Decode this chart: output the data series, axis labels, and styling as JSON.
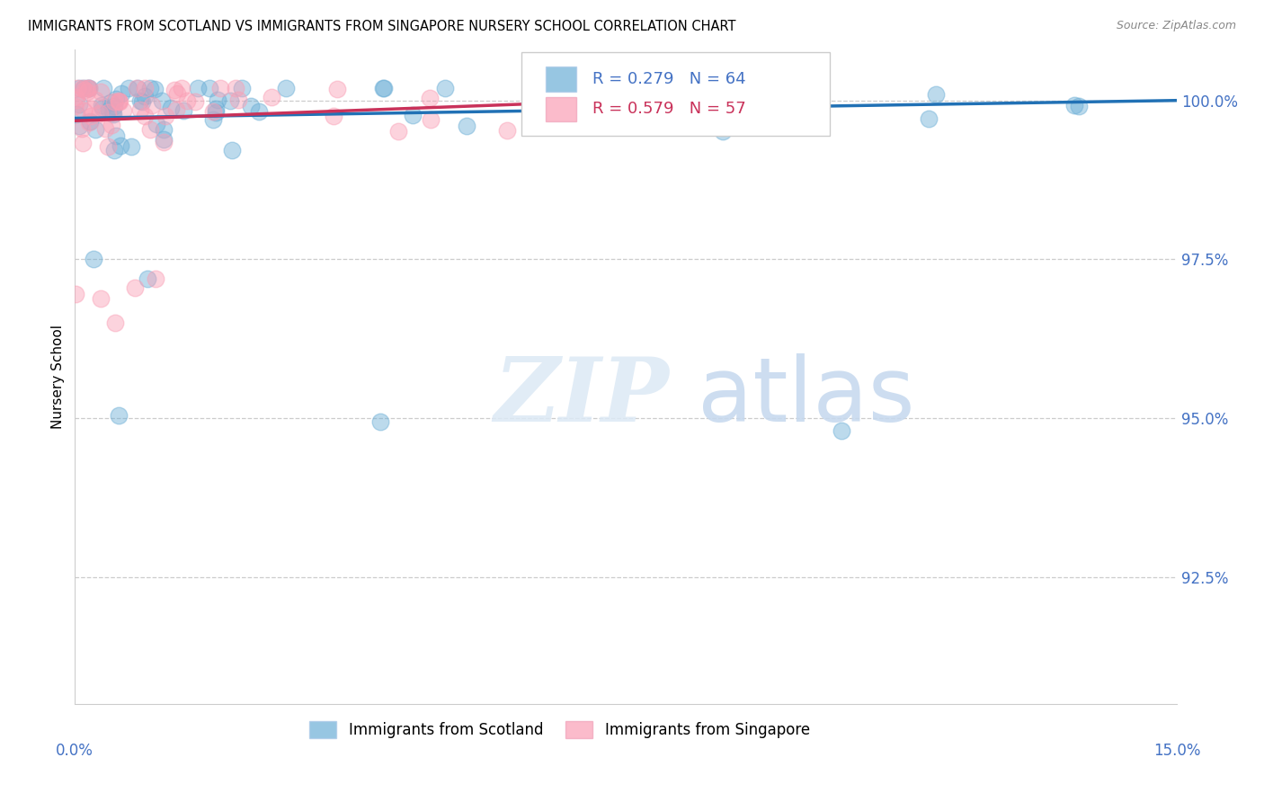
{
  "title": "IMMIGRANTS FROM SCOTLAND VS IMMIGRANTS FROM SINGAPORE NURSERY SCHOOL CORRELATION CHART",
  "source": "Source: ZipAtlas.com",
  "ylabel": "Nursery School",
  "ytick_labels": [
    "100.0%",
    "97.5%",
    "95.0%",
    "92.5%"
  ],
  "ytick_values": [
    1.0,
    0.975,
    0.95,
    0.925
  ],
  "xlim": [
    0.0,
    0.15
  ],
  "ylim": [
    0.905,
    1.008
  ],
  "scotland_color": "#6baed6",
  "singapore_color": "#fa9fb5",
  "scotland_line_color": "#2171b5",
  "singapore_line_color": "#c9325a",
  "scotland_R": 0.279,
  "scotland_N": 64,
  "singapore_R": 0.579,
  "singapore_N": 57,
  "legend_label_scotland": "Immigrants from Scotland",
  "legend_label_singapore": "Immigrants from Singapore",
  "watermark_zip": "ZIP",
  "watermark_atlas": "atlas",
  "marker_size": 180
}
